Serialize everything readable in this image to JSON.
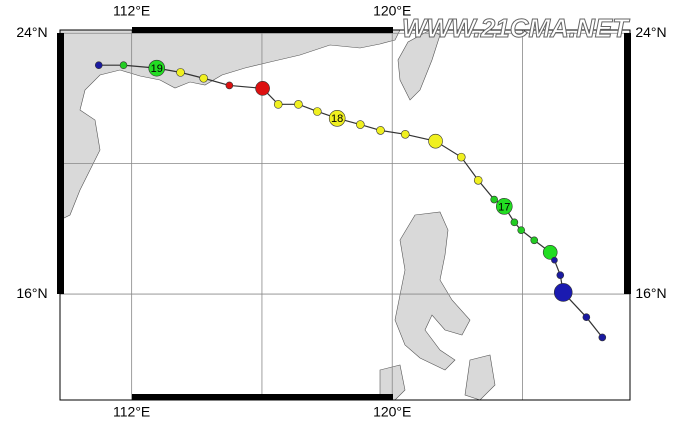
{
  "map": {
    "watermark": "WWW.21CMA.NET",
    "xlim": [
      109.8,
      127.3
    ],
    "ylim": [
      12.75,
      24.1
    ],
    "xticks": [
      {
        "value": 112,
        "label": "112°E"
      },
      {
        "value": 120,
        "label": "120°E"
      }
    ],
    "yticks": [
      {
        "value": 24,
        "label": "24°N"
      },
      {
        "value": 16,
        "label": "16°N"
      }
    ],
    "xgrid": [
      112,
      116,
      120,
      124
    ],
    "ygrid": [
      24,
      20,
      16
    ],
    "track_color": "#333333",
    "track": [
      {
        "lon": 110.99,
        "lat": 23.02,
        "color": "#1a1aa0",
        "size": 3.5
      },
      {
        "lon": 111.75,
        "lat": 23.02,
        "color": "#22cc22",
        "size": 3.5
      },
      {
        "lon": 112.77,
        "lat": 22.93,
        "color": "#22dd22",
        "size": 8,
        "label": "19"
      },
      {
        "lon": 113.5,
        "lat": 22.8,
        "color": "#f0f020",
        "size": 4
      },
      {
        "lon": 114.21,
        "lat": 22.62,
        "color": "#f0f020",
        "size": 4
      },
      {
        "lon": 115.0,
        "lat": 22.4,
        "color": "#dd1111",
        "size": 3.5
      },
      {
        "lon": 116.02,
        "lat": 22.31,
        "color": "#dd1111",
        "size": 7
      },
      {
        "lon": 116.5,
        "lat": 21.82,
        "color": "#f0f020",
        "size": 4
      },
      {
        "lon": 117.12,
        "lat": 21.82,
        "color": "#f0f020",
        "size": 4
      },
      {
        "lon": 117.7,
        "lat": 21.6,
        "color": "#f0f020",
        "size": 4
      },
      {
        "lon": 118.31,
        "lat": 21.39,
        "color": "#f0f020",
        "size": 8,
        "label": "18"
      },
      {
        "lon": 119.02,
        "lat": 21.2,
        "color": "#f0f020",
        "size": 4
      },
      {
        "lon": 119.64,
        "lat": 21.02,
        "color": "#f0f020",
        "size": 4
      },
      {
        "lon": 120.4,
        "lat": 20.9,
        "color": "#f0f020",
        "size": 4
      },
      {
        "lon": 121.33,
        "lat": 20.69,
        "color": "#f0f020",
        "size": 7
      },
      {
        "lon": 122.12,
        "lat": 20.2,
        "color": "#f0f020",
        "size": 4
      },
      {
        "lon": 122.64,
        "lat": 19.49,
        "color": "#f0f020",
        "size": 4
      },
      {
        "lon": 123.13,
        "lat": 18.9,
        "color": "#22cc22",
        "size": 3.5
      },
      {
        "lon": 123.44,
        "lat": 18.69,
        "color": "#22dd22",
        "size": 8,
        "label": "17"
      },
      {
        "lon": 123.75,
        "lat": 18.2,
        "color": "#22cc22",
        "size": 3.5
      },
      {
        "lon": 123.96,
        "lat": 17.96,
        "color": "#22cc22",
        "size": 3.5
      },
      {
        "lon": 124.36,
        "lat": 17.65,
        "color": "#22cc22",
        "size": 3.5
      },
      {
        "lon": 124.85,
        "lat": 17.28,
        "color": "#22dd22",
        "size": 7
      },
      {
        "lon": 124.98,
        "lat": 17.04,
        "color": "#1a1aa0",
        "size": 3
      },
      {
        "lon": 125.16,
        "lat": 16.58,
        "color": "#1a1aa0",
        "size": 3.5
      },
      {
        "lon": 125.25,
        "lat": 16.05,
        "color": "#1a1ab0",
        "size": 9
      },
      {
        "lon": 125.96,
        "lat": 15.29,
        "color": "#1a1aa0",
        "size": 3.5
      },
      {
        "lon": 126.45,
        "lat": 14.67,
        "color": "#1a1aa0",
        "size": 3.5
      }
    ]
  }
}
